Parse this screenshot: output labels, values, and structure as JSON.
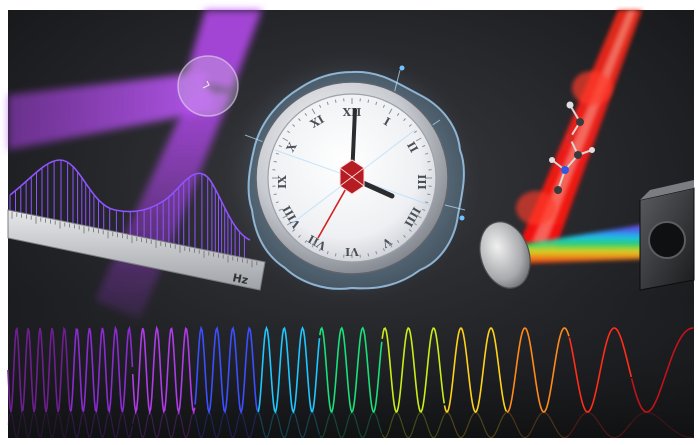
{
  "scene": {
    "ruler_unit": "Hz",
    "clock_numerals": [
      "XII",
      "I",
      "II",
      "III",
      "IIII",
      "V",
      "VI",
      "VII",
      "VIII",
      "IX",
      "X",
      "XI"
    ],
    "colors": {
      "background": "#1d1e21",
      "violet_beam": "#a63ee0",
      "red_beam": "#ff1a1a",
      "clock_face": "#f2f4f6",
      "ruler": "#cfd1d4",
      "frame": "#ffffff"
    },
    "spectrum_colors": [
      "#6d1f8f",
      "#8a2bd1",
      "#b03be8",
      "#3b4fff",
      "#1ec8ff",
      "#19e07a",
      "#c8ee1a",
      "#ffd21a",
      "#ff8a1a",
      "#ff2d1a",
      "#c2121a"
    ]
  }
}
